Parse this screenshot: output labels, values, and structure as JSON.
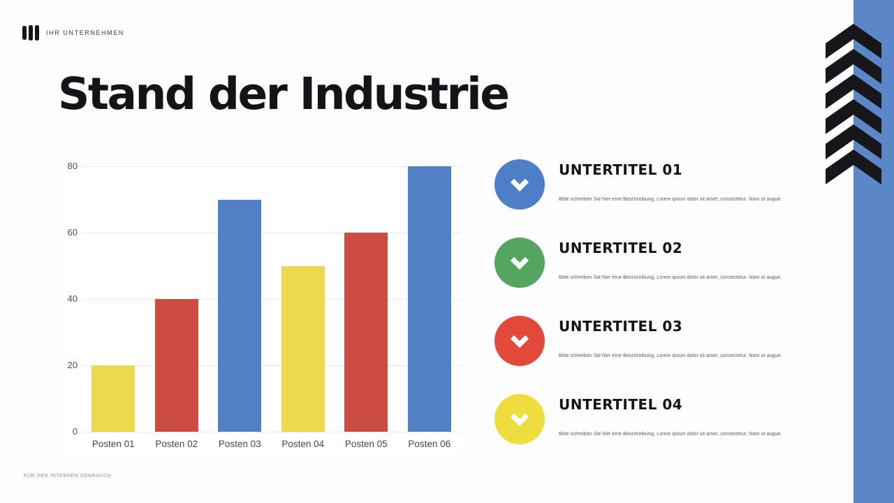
{
  "slide": {
    "logo_text": "IHR UNTERNEHMEN",
    "title": "Stand der Industrie",
    "footer": "FÜR DEN INTERNEN GEBRAUCH"
  },
  "colors": {
    "band_blue": "#5b87c8",
    "chevron_black": "#17171b",
    "grid_gray": "#e8e8e8"
  },
  "chart_data": {
    "type": "bar",
    "categories": [
      "Posten 01",
      "Posten 02",
      "Posten 03",
      "Posten 04",
      "Posten 05",
      "Posten 06"
    ],
    "values": [
      20,
      40,
      70,
      50,
      60,
      80
    ],
    "bar_colors": [
      "#ecd94c",
      "#cc4b42",
      "#5180c4",
      "#ecd94c",
      "#cc4b42",
      "#5180c4"
    ],
    "title": "",
    "xlabel": "",
    "ylabel": "",
    "ylim": [
      0,
      80
    ],
    "yticks": [
      0,
      20,
      40,
      60,
      80
    ],
    "grid": true,
    "legend": false
  },
  "items": [
    {
      "title": "UNTERTITEL 01",
      "color": "#4d7ec6",
      "description": "Bitte schreiben Sie hier eine Beschreibung, Lorem ipsum dolor sit amet, consectetur. Nam ut augue."
    },
    {
      "title": "UNTERTITEL 02",
      "color": "#55a45f",
      "description": "Bitte schreiben Sie hier eine Beschreibung, Lorem ipsum dolor sit amet, consectetur. Nam ut augue."
    },
    {
      "title": "UNTERTITEL 03",
      "color": "#e2493b",
      "description": "Bitte schreiben Sie hier eine Beschreibung, Lorem ipsum dolor sit amet, consectetur. Nam ut augue."
    },
    {
      "title": "UNTERTITEL 04",
      "color": "#efdc3e",
      "description": "Bitte schreiben Sie hier eine Beschreibung, Lorem ipsum dolor sit amet, consectetur. Nam ut augue."
    }
  ]
}
